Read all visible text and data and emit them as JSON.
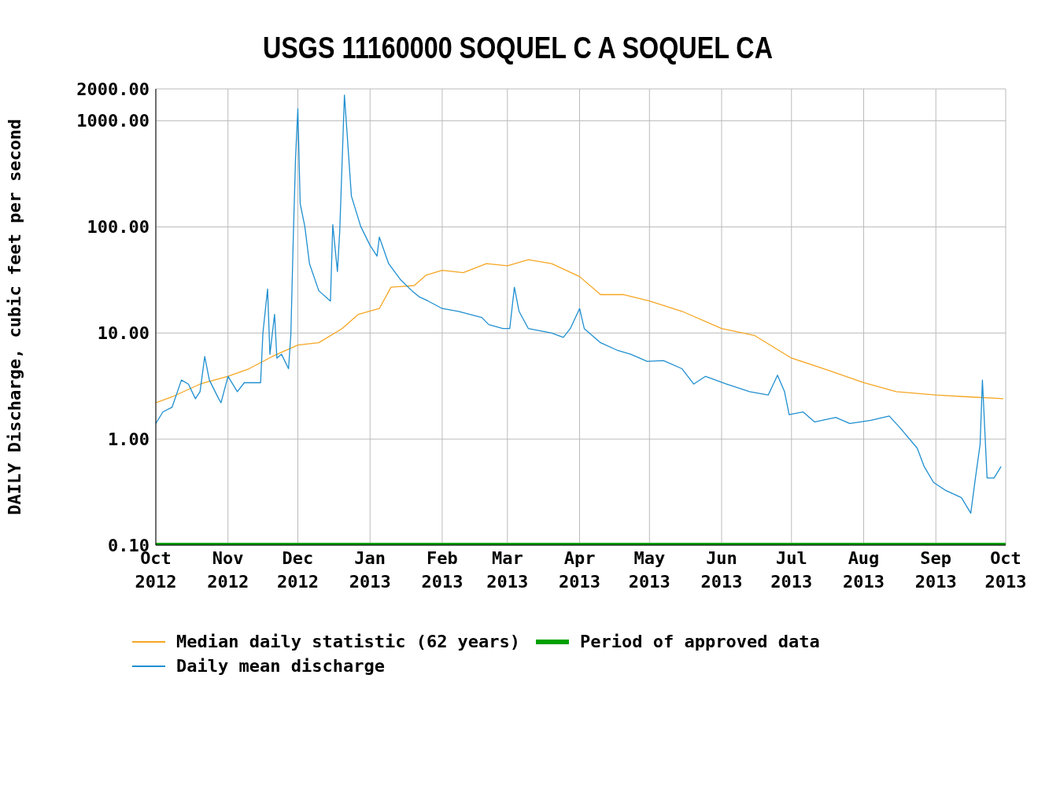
{
  "chart_data": {
    "type": "line",
    "title": "USGS 11160000 SOQUEL C A SOQUEL CA",
    "ylabel": "DAILY Discharge, cubic feet per second",
    "log": "y",
    "grid": true,
    "legend": "bottom",
    "marker": "none",
    "line_style": "solid",
    "xlim": [
      "2012-10-01",
      "2013-10-01"
    ],
    "xticks": [
      {
        "value": "2012-10-01",
        "label": "Oct 2012"
      },
      {
        "value": "2012-11-01",
        "label": "Nov 2012"
      },
      {
        "value": "2012-12-01",
        "label": "Dec 2012"
      },
      {
        "value": "2013-01-01",
        "label": "Jan 2013"
      },
      {
        "value": "2013-02-01",
        "label": "Feb 2013"
      },
      {
        "value": "2013-03-01",
        "label": "Mar 2013"
      },
      {
        "value": "2013-04-01",
        "label": "Apr 2013"
      },
      {
        "value": "2013-05-01",
        "label": "May 2013"
      },
      {
        "value": "2013-06-01",
        "label": "Jun 2013"
      },
      {
        "value": "2013-07-01",
        "label": "Jul 2013"
      },
      {
        "value": "2013-08-01",
        "label": "Aug 2013"
      },
      {
        "value": "2013-09-01",
        "label": "Sep 2013"
      },
      {
        "value": "2013-10-01",
        "label": "Oct 2013"
      }
    ],
    "ylim": [
      0.1,
      2000
    ],
    "yticks": [
      {
        "value": 0.1,
        "label": "0.10"
      },
      {
        "value": 1,
        "label": "1.00"
      },
      {
        "value": 10,
        "label": "10.00"
      },
      {
        "value": 100,
        "label": "100.00"
      },
      {
        "value": 1000,
        "label": "1000.00"
      },
      {
        "value": 2000,
        "label": "2000.00"
      }
    ],
    "series": [
      {
        "name": "Median daily statistic (62 years)",
        "color": "#f5a623",
        "x": [
          "2012-10-01",
          "2012-10-08",
          "2012-10-20",
          "2012-11-01",
          "2012-11-10",
          "2012-11-20",
          "2012-12-01",
          "2012-12-10",
          "2012-12-20",
          "2012-12-27",
          "2013-01-05",
          "2013-01-10",
          "2013-01-20",
          "2013-01-25",
          "2013-02-01",
          "2013-02-10",
          "2013-02-20",
          "2013-03-01",
          "2013-03-10",
          "2013-03-20",
          "2013-04-01",
          "2013-04-10",
          "2013-04-20",
          "2013-05-01",
          "2013-05-15",
          "2013-06-01",
          "2013-06-15",
          "2013-07-01",
          "2013-07-15",
          "2013-08-01",
          "2013-08-15",
          "2013-09-01",
          "2013-09-15",
          "2013-09-30"
        ],
        "values": [
          2.2,
          2.5,
          3.3,
          3.9,
          4.6,
          6,
          7.7,
          8.1,
          11,
          15,
          17,
          27,
          28,
          35,
          39,
          37,
          45,
          43,
          49,
          45,
          34,
          23,
          23,
          20,
          16,
          11,
          9.5,
          5.8,
          4.6,
          3.4,
          2.8,
          2.6,
          2.5,
          2.4
        ]
      },
      {
        "name": "Period of approved data",
        "color": "#00a000",
        "x": [
          "2012-10-01",
          "2013-10-01"
        ],
        "values": [
          0.1,
          0.1
        ]
      },
      {
        "name": "Daily mean discharge",
        "color": "#1f8fd0",
        "x": [
          "2012-10-01",
          "2012-10-04",
          "2012-10-08",
          "2012-10-12",
          "2012-10-15",
          "2012-10-18",
          "2012-10-20",
          "2012-10-22",
          "2012-10-24",
          "2012-10-28",
          "2012-10-29",
          "2012-11-01",
          "2012-11-05",
          "2012-11-08",
          "2012-11-15",
          "2012-11-16",
          "2012-11-18",
          "2012-11-19",
          "2012-11-21",
          "2012-11-22",
          "2012-11-24",
          "2012-11-27",
          "2012-11-28",
          "2012-11-29",
          "2012-11-30",
          "2012-12-01",
          "2012-12-02",
          "2012-12-04",
          "2012-12-06",
          "2012-12-10",
          "2012-12-15",
          "2012-12-16",
          "2012-12-18",
          "2012-12-19",
          "2012-12-21",
          "2012-12-22",
          "2012-12-24",
          "2012-12-28",
          "2013-01-01",
          "2013-01-04",
          "2013-01-05",
          "2013-01-09",
          "2013-01-14",
          "2013-01-19",
          "2013-01-22",
          "2013-01-26",
          "2013-02-01",
          "2013-02-08",
          "2013-02-18",
          "2013-02-21",
          "2013-02-27",
          "2013-03-02",
          "2013-03-04",
          "2013-03-06",
          "2013-03-10",
          "2013-03-20",
          "2013-03-25",
          "2013-03-28",
          "2013-04-01",
          "2013-04-03",
          "2013-04-10",
          "2013-04-17",
          "2013-04-23",
          "2013-04-30",
          "2013-05-07",
          "2013-05-15",
          "2013-05-20",
          "2013-05-25",
          "2013-06-03",
          "2013-06-13",
          "2013-06-21",
          "2013-06-25",
          "2013-06-28",
          "2013-06-30",
          "2013-07-06",
          "2013-07-11",
          "2013-07-20",
          "2013-07-26",
          "2013-08-04",
          "2013-08-12",
          "2013-08-17",
          "2013-08-24",
          "2013-08-27",
          "2013-08-31",
          "2013-09-05",
          "2013-09-12",
          "2013-09-16",
          "2013-09-18",
          "2013-09-20",
          "2013-09-21",
          "2013-09-23",
          "2013-09-26",
          "2013-09-29"
        ],
        "values": [
          1.4,
          1.8,
          2,
          3.6,
          3.3,
          2.4,
          2.8,
          6,
          3.6,
          2.4,
          2.2,
          3.9,
          2.8,
          3.4,
          3.4,
          10,
          26,
          6.3,
          15,
          5.8,
          6.3,
          4.6,
          9.7,
          73,
          440,
          1300,
          166,
          101,
          45,
          25,
          20,
          105,
          38,
          92,
          1750,
          850,
          195,
          101,
          67,
          53,
          80,
          45,
          32,
          25,
          22,
          20,
          17,
          16,
          14,
          12,
          11,
          11,
          27,
          16,
          11,
          10,
          9.1,
          11,
          17,
          11,
          8.1,
          6.9,
          6.3,
          5.4,
          5.5,
          4.6,
          3.3,
          3.9,
          3.3,
          2.8,
          2.6,
          4,
          2.8,
          1.7,
          1.8,
          1.45,
          1.6,
          1.4,
          1.5,
          1.65,
          1.25,
          0.82,
          0.55,
          0.39,
          0.33,
          0.28,
          0.2,
          0.43,
          0.89,
          3.6,
          0.43,
          0.43,
          0.55
        ]
      }
    ]
  }
}
